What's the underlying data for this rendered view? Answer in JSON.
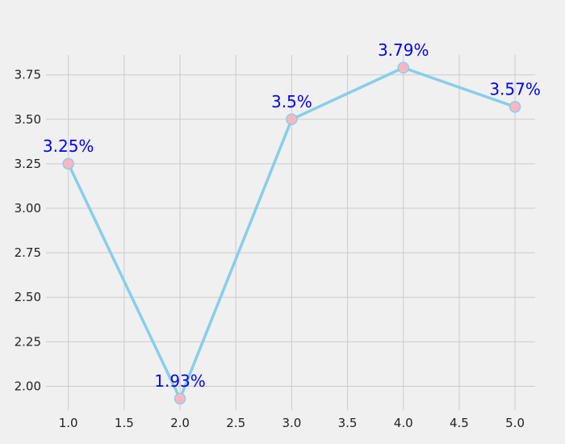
{
  "chart_data": {
    "type": "line",
    "title": "",
    "xlabel": "",
    "ylabel": "",
    "x": [
      1.0,
      2.0,
      3.0,
      4.0,
      5.0
    ],
    "series": [
      {
        "values": [
          3.25,
          1.93,
          3.5,
          3.79,
          3.57
        ]
      }
    ],
    "data_labels": [
      "3.25%",
      "1.93%",
      "3.5%",
      "3.79%",
      "3.57%"
    ],
    "x_ticks": [
      1.0,
      1.5,
      2.0,
      2.5,
      3.0,
      3.5,
      4.0,
      4.5,
      5.0
    ],
    "x_tick_labels": [
      "1.0",
      "1.5",
      "2.0",
      "2.5",
      "3.0",
      "3.5",
      "4.0",
      "4.5",
      "5.0"
    ],
    "y_ticks": [
      2.0,
      2.25,
      2.5,
      2.75,
      3.0,
      3.25,
      3.5,
      3.75
    ],
    "y_tick_labels": [
      "2.00",
      "2.25",
      "2.50",
      "2.75",
      "3.00",
      "3.25",
      "3.50",
      "3.75"
    ],
    "xlim": [
      0.8,
      5.18
    ],
    "ylim": [
      1.866,
      3.862
    ],
    "grid": true,
    "legend": "none",
    "colors": {
      "background": "#f0f0f0",
      "grid": "#cbcbcb",
      "line": "#87ceeb",
      "marker_fill": "#ffb6c1",
      "marker_edge": "#87ceeb",
      "data_label": "#0000ff",
      "tick_label": "#222222"
    }
  }
}
